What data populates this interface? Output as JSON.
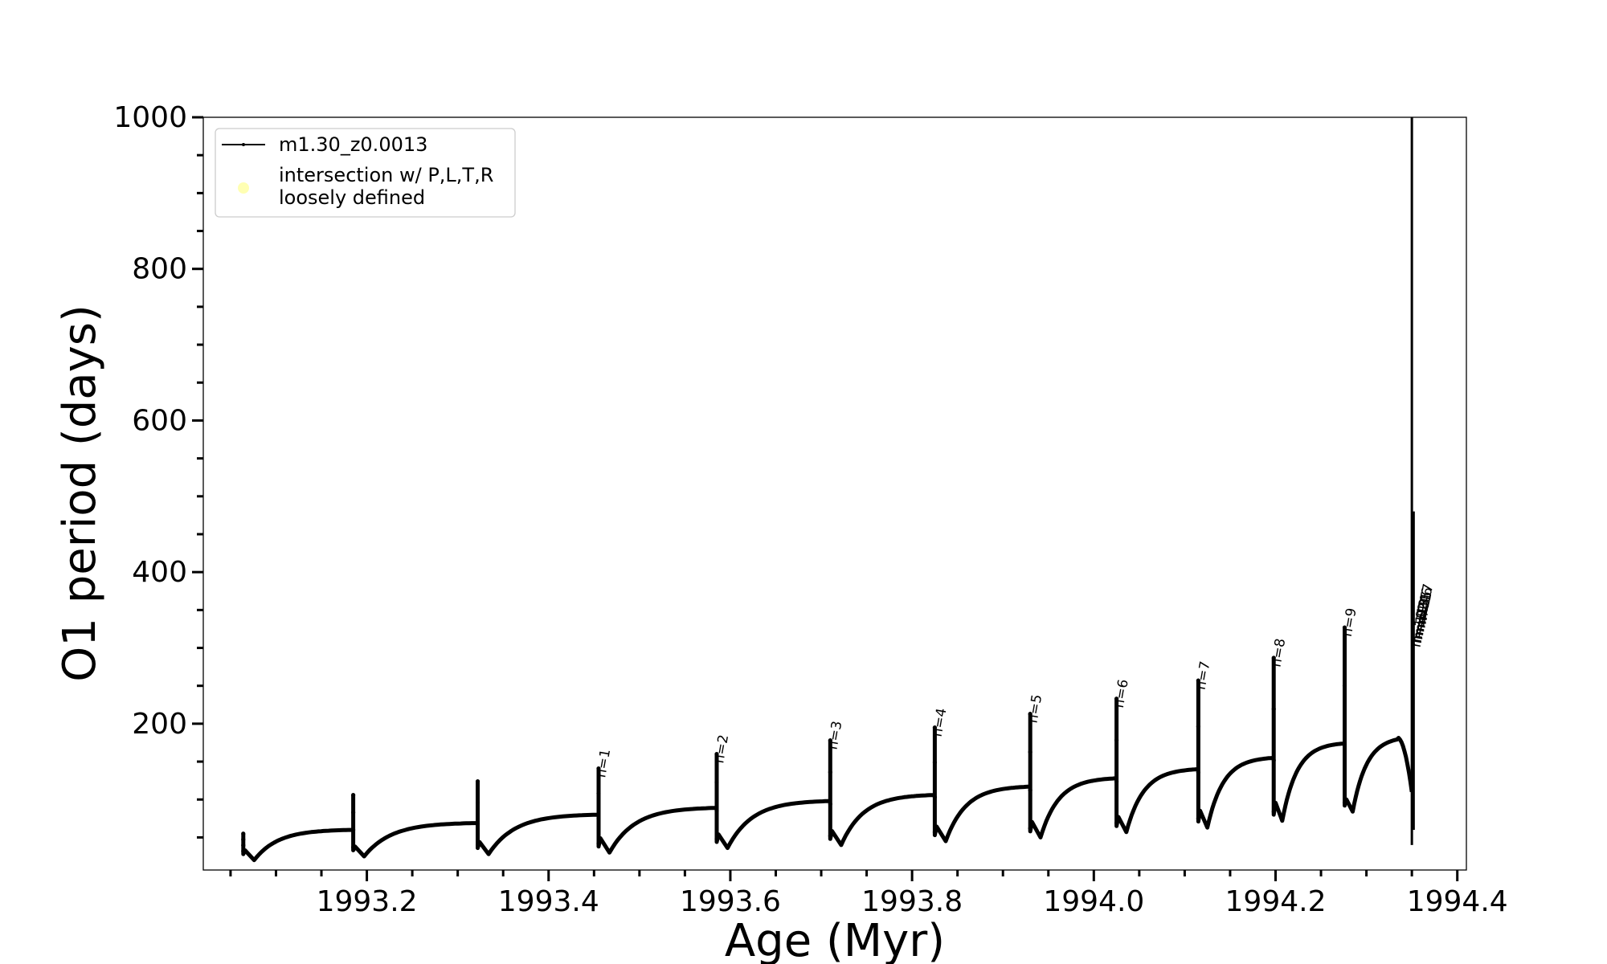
{
  "chart_data": {
    "type": "line",
    "xlabel": "Age (Myr)",
    "ylabel": "O1 period (days)",
    "xlim": [
      1993.02,
      1994.41
    ],
    "ylim": [
      7,
      1000
    ],
    "x_ticks": [
      1993.2,
      1993.4,
      1993.6,
      1993.8,
      1994.0,
      1994.2,
      1994.4
    ],
    "x_tick_labels": [
      "1993.2",
      "1993.4",
      "1993.6",
      "1993.8",
      "1994.0",
      "1994.2",
      "1994.4"
    ],
    "y_ticks": [
      200,
      400,
      600,
      800,
      1000
    ],
    "y_tick_labels": [
      "200",
      "400",
      "600",
      "800",
      "1000"
    ],
    "line_color": "#000000",
    "marker_color": "#ffffa0",
    "legend": {
      "placement": "upper-left",
      "entries": [
        {
          "label": "m1.30_z0.0013",
          "kind": "line"
        },
        {
          "label_lines": [
            "intersection w/ P,L,T,R",
            "loosely defined"
          ],
          "kind": "marker"
        }
      ]
    },
    "series": [
      {
        "name": "m1.30_z0.0013",
        "pulses": [
          {
            "t": 1993.064,
            "peak": 55,
            "min": 20,
            "plateau": 60,
            "end": 1993.185
          },
          {
            "t": 1993.185,
            "peak": 106,
            "min": 25,
            "plateau": 69,
            "end": 1993.322
          },
          {
            "t": 1993.322,
            "peak": 124,
            "min": 28,
            "plateau": 80,
            "end": 1993.455
          },
          {
            "t": 1993.455,
            "peak": 141,
            "min": 30,
            "plateau": 89,
            "end": 1993.585
          },
          {
            "t": 1993.585,
            "peak": 160,
            "min": 36,
            "plateau": 98,
            "end": 1993.71
          },
          {
            "t": 1993.71,
            "peak": 178,
            "min": 40,
            "plateau": 106,
            "end": 1993.825
          },
          {
            "t": 1993.825,
            "peak": 195,
            "min": 45,
            "plateau": 117,
            "end": 1993.93
          },
          {
            "t": 1993.93,
            "peak": 213,
            "min": 50,
            "plateau": 128,
            "end": 1994.025
          },
          {
            "t": 1994.025,
            "peak": 233,
            "min": 57,
            "plateau": 140,
            "end": 1994.115
          },
          {
            "t": 1994.115,
            "peak": 257,
            "min": 63,
            "plateau": 155,
            "end": 1994.198
          },
          {
            "t": 1994.198,
            "peak": 287,
            "min": 72,
            "plateau": 174,
            "end": 1994.276
          },
          {
            "t": 1994.276,
            "peak": 327,
            "min": 84,
            "plateau": 182,
            "end": 1994.35
          }
        ],
        "final_spike": {
          "t": 1994.35,
          "top": 1000,
          "bottom": 40
        }
      }
    ],
    "annotations": [
      {
        "text": "n=1",
        "x": 1993.455,
        "y": 128
      },
      {
        "text": "n=2",
        "x": 1993.585,
        "y": 147
      },
      {
        "text": "n=3",
        "x": 1993.71,
        "y": 165
      },
      {
        "text": "n=4",
        "x": 1993.825,
        "y": 182
      },
      {
        "text": "n=5",
        "x": 1993.93,
        "y": 200
      },
      {
        "text": "n=6",
        "x": 1994.025,
        "y": 220
      },
      {
        "text": "n=7",
        "x": 1994.115,
        "y": 244
      },
      {
        "text": "n=8",
        "x": 1994.198,
        "y": 274
      },
      {
        "text": "n=9",
        "x": 1994.276,
        "y": 314
      },
      {
        "text": "n=10",
        "x": 1994.352,
        "y": 300
      },
      {
        "text": "n=11",
        "x": 1994.353,
        "y": 305
      },
      {
        "text": "n=12",
        "x": 1994.354,
        "y": 310
      },
      {
        "text": "n=13",
        "x": 1994.355,
        "y": 315
      },
      {
        "text": "n=14",
        "x": 1994.356,
        "y": 320
      },
      {
        "text": "n=15",
        "x": 1994.357,
        "y": 325
      },
      {
        "text": "n=16",
        "x": 1994.358,
        "y": 330
      },
      {
        "text": "n=17",
        "x": 1994.359,
        "y": 335
      }
    ]
  }
}
